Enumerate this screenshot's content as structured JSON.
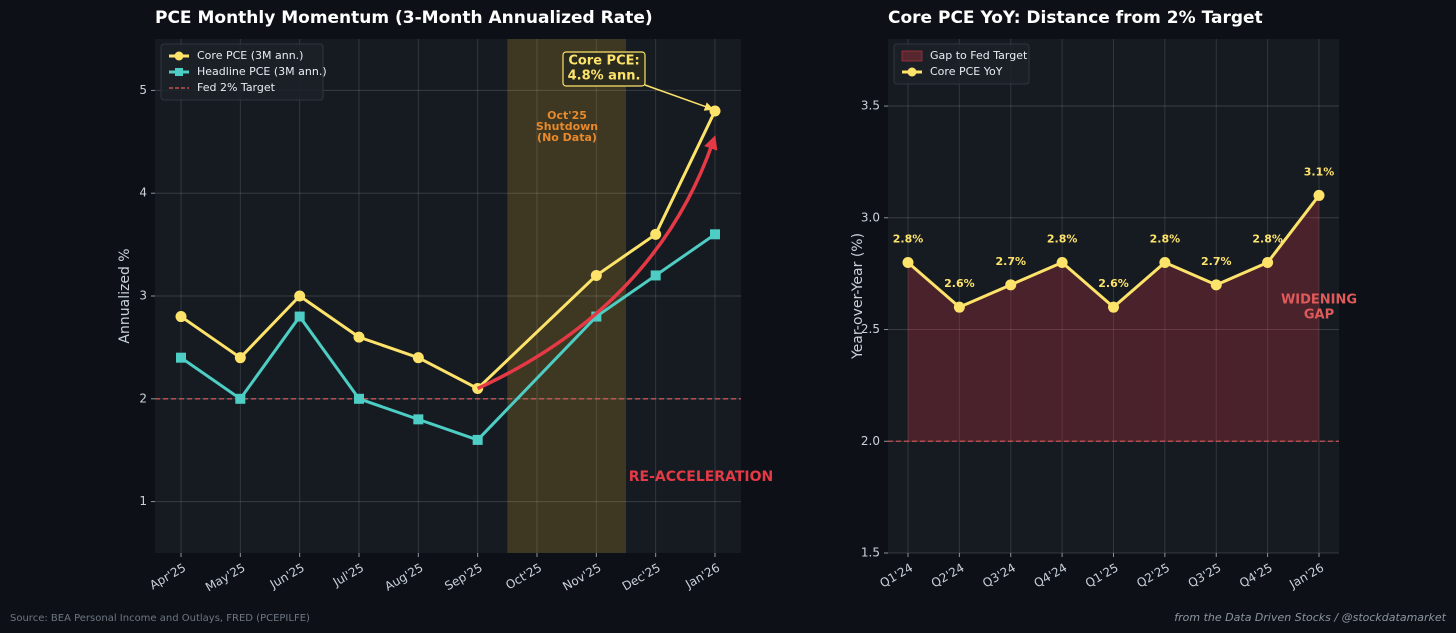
{
  "chart_data": [
    {
      "type": "line",
      "title": "PCE Monthly Momentum (3-Month Annualized Rate)",
      "y_label": "Annualized %",
      "categories": [
        "Apr'25",
        "May'25",
        "Jun'25",
        "Jul'25",
        "Aug'25",
        "Sep'25",
        "Oct'25",
        "Nov'25",
        "Dec'25",
        "Jan'26"
      ],
      "series": [
        {
          "name": "Core PCE (3M ann.)",
          "color": "#fde36a",
          "marker": "circle",
          "values": [
            2.8,
            2.4,
            3.0,
            2.6,
            2.4,
            2.1,
            null,
            3.2,
            3.6,
            4.8
          ]
        },
        {
          "name": "Headline PCE (3M ann.)",
          "color": "#4ecdc4",
          "marker": "square",
          "values": [
            2.4,
            2.0,
            2.8,
            2.0,
            1.8,
            1.6,
            null,
            2.8,
            3.2,
            3.6
          ]
        }
      ],
      "target": 2,
      "target_name": "Fed 2% Target",
      "target_color": "#e05a5a",
      "ylim": [
        0.5,
        5.5
      ],
      "yticks": [
        1,
        2,
        3,
        4,
        5
      ],
      "grid": true,
      "legend": "upper left",
      "annotations": [
        {
          "text": [
            "Oct'25",
            "Shutdown",
            "(No Data)"
          ],
          "color": "#e8892b"
        },
        {
          "text": [
            "Core PCE:",
            "4.8% ann."
          ],
          "color": "#fde36a"
        },
        {
          "text": [
            "RE-ACCELERATION"
          ],
          "color": "#e63946"
        }
      ]
    },
    {
      "type": "area_line",
      "title": "Core PCE YoY: Distance from 2% Target",
      "y_label": "Year-over-Year (%)",
      "categories": [
        "Q1'24",
        "Q2'24",
        "Q3'24",
        "Q4'24",
        "Q1'25",
        "Q2'25",
        "Q3'25",
        "Q4'25",
        "Jan'26"
      ],
      "series": [
        {
          "name": "Core PCE YoY",
          "color": "#fde36a",
          "marker": "circle",
          "values": [
            2.8,
            2.6,
            2.7,
            2.8,
            2.6,
            2.8,
            2.7,
            2.8,
            3.1
          ],
          "value_labels": [
            "2.8%",
            "2.6%",
            "2.7%",
            "2.8%",
            "2.6%",
            "2.8%",
            "2.7%",
            "2.8%",
            "3.1%"
          ]
        }
      ],
      "area_name": "Gap to Fed Target",
      "area_color": "#e63946",
      "target": 2,
      "target_color": "#e05a5a",
      "ylim": [
        1.5,
        3.8
      ],
      "yticks": [
        1.5,
        {
          "value": 2.0,
          "label": "2.0"
        },
        2.5,
        {
          "value": 3.0,
          "label": "3.0"
        },
        3.5
      ],
      "grid": true,
      "legend": "upper left",
      "annotations": [
        {
          "text": [
            "WIDENING",
            "GAP"
          ],
          "color": "#e05a5a"
        }
      ]
    }
  ],
  "footer": {
    "source": "Source: BEA Personal Income and Outlays, FRED (PCEPILFE)",
    "credit": "from the Data Driven Stocks / @stockdatamarket"
  }
}
